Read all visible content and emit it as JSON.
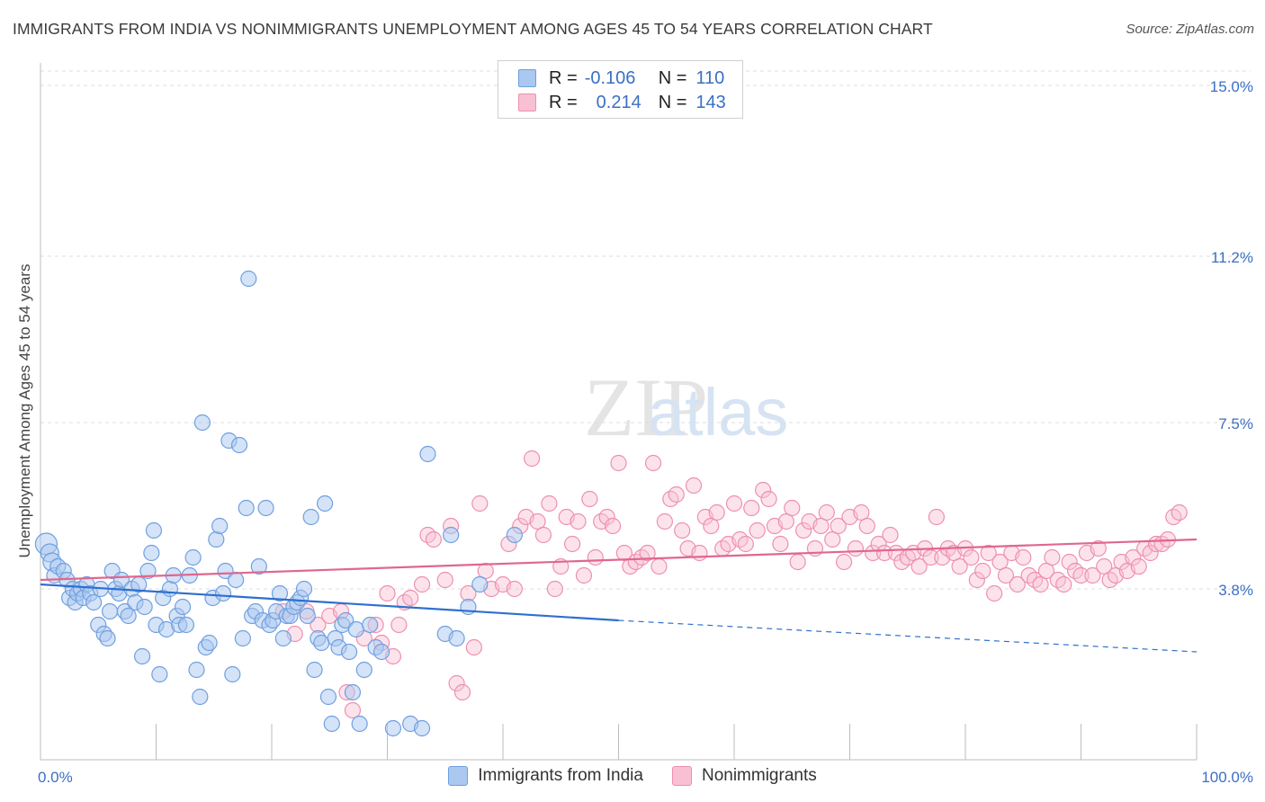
{
  "title": "IMMIGRANTS FROM INDIA VS NONIMMIGRANTS UNEMPLOYMENT AMONG AGES 45 TO 54 YEARS CORRELATION CHART",
  "source": "Source: ZipAtlas.com",
  "watermark": {
    "zip": "ZIP",
    "atlas": "atlas"
  },
  "legend": {
    "r_label": "R =",
    "n_label": "N =",
    "rows": [
      {
        "r": "-0.106",
        "n": "110",
        "fill": "#aac8f0",
        "stroke": "#6f9fe0"
      },
      {
        "r": "0.214",
        "n": "143",
        "fill": "#f8c0d2",
        "stroke": "#ee8fae"
      }
    ]
  },
  "chart_data": {
    "type": "scatter",
    "title": "IMMIGRANTS FROM INDIA VS NONIMMIGRANTS UNEMPLOYMENT AMONG AGES 45 TO 54 YEARS CORRELATION CHART",
    "xlabel": "",
    "ylabel": "Unemployment Among Ages 45 to 54 years",
    "xlim": [
      0,
      100
    ],
    "ylim": [
      0,
      15.5
    ],
    "x_tick_labels": [
      "0.0%",
      "100.0%"
    ],
    "y_ticks": [
      3.8,
      7.5,
      11.2,
      15.0
    ],
    "y_tick_labels": [
      "3.8%",
      "7.5%",
      "11.2%",
      "15.0%"
    ],
    "grid": true,
    "legend_position": "top-center",
    "colors": {
      "india": "#6f9fe0",
      "india_fill": "#aac8f0",
      "non": "#ee8fae",
      "non_fill": "#f8c0d2",
      "india_line": "#2f6fce",
      "non_line": "#e0678e",
      "tick_label": "#3b6fc4"
    },
    "series": [
      {
        "name": "Immigrants from India",
        "r": -0.106,
        "n": 110,
        "trend": {
          "x0": 0,
          "y0": 3.9,
          "x1": 50,
          "y1": 3.1,
          "dashed_to_x": 100,
          "dashed_to_y": 2.4
        },
        "points": [
          [
            0.5,
            4.8
          ],
          [
            0.8,
            4.6
          ],
          [
            1.0,
            4.4
          ],
          [
            1.2,
            4.1
          ],
          [
            1.5,
            4.3
          ],
          [
            2,
            4.2
          ],
          [
            2.3,
            4.0
          ],
          [
            2.5,
            3.6
          ],
          [
            2.8,
            3.8
          ],
          [
            3,
            3.5
          ],
          [
            3.2,
            3.7
          ],
          [
            3.5,
            3.8
          ],
          [
            3.7,
            3.6
          ],
          [
            4,
            3.9
          ],
          [
            4.3,
            3.7
          ],
          [
            4.6,
            3.5
          ],
          [
            5,
            3.0
          ],
          [
            5.2,
            3.8
          ],
          [
            5.5,
            2.8
          ],
          [
            5.8,
            2.7
          ],
          [
            6,
            3.3
          ],
          [
            6.2,
            4.2
          ],
          [
            6.5,
            3.8
          ],
          [
            6.8,
            3.7
          ],
          [
            7,
            4.0
          ],
          [
            7.3,
            3.3
          ],
          [
            7.6,
            3.2
          ],
          [
            7.9,
            3.8
          ],
          [
            8.2,
            3.5
          ],
          [
            8.5,
            3.9
          ],
          [
            8.8,
            2.3
          ],
          [
            9,
            3.4
          ],
          [
            9.3,
            4.2
          ],
          [
            9.6,
            4.6
          ],
          [
            9.8,
            5.1
          ],
          [
            10,
            3.0
          ],
          [
            10.3,
            1.9
          ],
          [
            10.6,
            3.6
          ],
          [
            10.9,
            2.9
          ],
          [
            11.2,
            3.8
          ],
          [
            11.5,
            4.1
          ],
          [
            11.8,
            3.2
          ],
          [
            12,
            3.0
          ],
          [
            12.3,
            3.4
          ],
          [
            12.6,
            3.0
          ],
          [
            12.9,
            4.1
          ],
          [
            13.2,
            4.5
          ],
          [
            13.5,
            2.0
          ],
          [
            13.8,
            1.4
          ],
          [
            14,
            7.5
          ],
          [
            14.3,
            2.5
          ],
          [
            14.6,
            2.6
          ],
          [
            14.9,
            3.6
          ],
          [
            15.2,
            4.9
          ],
          [
            15.5,
            5.2
          ],
          [
            15.8,
            3.7
          ],
          [
            16,
            4.2
          ],
          [
            16.3,
            7.1
          ],
          [
            16.6,
            1.9
          ],
          [
            16.9,
            4.0
          ],
          [
            17.2,
            7.0
          ],
          [
            17.5,
            2.7
          ],
          [
            17.8,
            5.6
          ],
          [
            18,
            10.7
          ],
          [
            18.3,
            3.2
          ],
          [
            18.6,
            3.3
          ],
          [
            18.9,
            4.3
          ],
          [
            19.2,
            3.1
          ],
          [
            19.5,
            5.6
          ],
          [
            19.8,
            3.0
          ],
          [
            20.1,
            3.1
          ],
          [
            20.4,
            3.3
          ],
          [
            20.7,
            3.7
          ],
          [
            21,
            2.7
          ],
          [
            21.3,
            3.2
          ],
          [
            21.6,
            3.2
          ],
          [
            21.9,
            3.4
          ],
          [
            22.2,
            3.5
          ],
          [
            22.5,
            3.6
          ],
          [
            22.8,
            3.8
          ],
          [
            23.1,
            3.2
          ],
          [
            23.4,
            5.4
          ],
          [
            23.7,
            2.0
          ],
          [
            24,
            2.7
          ],
          [
            24.3,
            2.6
          ],
          [
            24.6,
            5.7
          ],
          [
            24.9,
            1.4
          ],
          [
            25.2,
            0.8
          ],
          [
            25.5,
            2.7
          ],
          [
            25.8,
            2.5
          ],
          [
            26.1,
            3.0
          ],
          [
            26.4,
            3.1
          ],
          [
            26.7,
            2.4
          ],
          [
            27,
            1.5
          ],
          [
            27.3,
            2.9
          ],
          [
            27.6,
            0.8
          ],
          [
            28,
            2.0
          ],
          [
            28.5,
            3.0
          ],
          [
            29,
            2.5
          ],
          [
            29.5,
            2.4
          ],
          [
            30.5,
            0.7
          ],
          [
            32,
            0.8
          ],
          [
            33,
            0.7
          ],
          [
            33.5,
            6.8
          ],
          [
            35,
            2.8
          ],
          [
            35.5,
            5.0
          ],
          [
            36,
            2.7
          ],
          [
            37,
            3.4
          ],
          [
            38,
            3.9
          ],
          [
            41,
            5.0
          ]
        ]
      },
      {
        "name": "Nonimmigrants",
        "r": 0.214,
        "n": 143,
        "trend": {
          "x0": 0,
          "y0": 4.0,
          "x1": 100,
          "y1": 4.9
        },
        "points": [
          [
            21,
            3.3
          ],
          [
            22,
            2.8
          ],
          [
            23,
            3.3
          ],
          [
            24,
            3.0
          ],
          [
            25,
            3.2
          ],
          [
            26,
            3.3
          ],
          [
            26.5,
            1.5
          ],
          [
            27,
            1.1
          ],
          [
            28,
            2.7
          ],
          [
            29,
            3.0
          ],
          [
            29.5,
            2.6
          ],
          [
            30,
            3.7
          ],
          [
            30.5,
            2.3
          ],
          [
            31,
            3.0
          ],
          [
            31.5,
            3.5
          ],
          [
            32,
            3.6
          ],
          [
            33,
            3.9
          ],
          [
            33.5,
            5.0
          ],
          [
            34,
            4.9
          ],
          [
            35,
            4.0
          ],
          [
            35.5,
            5.2
          ],
          [
            36,
            1.7
          ],
          [
            36.5,
            1.5
          ],
          [
            37,
            3.7
          ],
          [
            37.5,
            2.5
          ],
          [
            38,
            5.7
          ],
          [
            38.5,
            4.2
          ],
          [
            39,
            3.8
          ],
          [
            40,
            3.9
          ],
          [
            40.5,
            4.8
          ],
          [
            41,
            3.8
          ],
          [
            41.5,
            5.2
          ],
          [
            42,
            5.4
          ],
          [
            42.5,
            6.7
          ],
          [
            43,
            5.3
          ],
          [
            43.5,
            5.0
          ],
          [
            44,
            5.7
          ],
          [
            44.5,
            3.8
          ],
          [
            45,
            4.3
          ],
          [
            45.5,
            5.4
          ],
          [
            46,
            4.8
          ],
          [
            46.5,
            5.3
          ],
          [
            47,
            4.1
          ],
          [
            47.5,
            5.8
          ],
          [
            48,
            4.5
          ],
          [
            48.5,
            5.3
          ],
          [
            49,
            5.4
          ],
          [
            49.5,
            5.2
          ],
          [
            50,
            6.6
          ],
          [
            50.5,
            4.6
          ],
          [
            51,
            4.3
          ],
          [
            51.5,
            4.4
          ],
          [
            52,
            4.5
          ],
          [
            52.5,
            4.6
          ],
          [
            53,
            6.6
          ],
          [
            53.5,
            4.3
          ],
          [
            54,
            5.3
          ],
          [
            54.5,
            5.8
          ],
          [
            55,
            5.9
          ],
          [
            55.5,
            5.1
          ],
          [
            56,
            4.7
          ],
          [
            56.5,
            6.1
          ],
          [
            57,
            4.6
          ],
          [
            57.5,
            5.4
          ],
          [
            58,
            5.2
          ],
          [
            58.5,
            5.5
          ],
          [
            59,
            4.7
          ],
          [
            59.5,
            4.8
          ],
          [
            60,
            5.7
          ],
          [
            60.5,
            4.9
          ],
          [
            61,
            4.8
          ],
          [
            61.5,
            5.6
          ],
          [
            62,
            5.1
          ],
          [
            62.5,
            6.0
          ],
          [
            63,
            5.8
          ],
          [
            63.5,
            5.2
          ],
          [
            64,
            4.8
          ],
          [
            64.5,
            5.3
          ],
          [
            65,
            5.6
          ],
          [
            65.5,
            4.4
          ],
          [
            66,
            5.1
          ],
          [
            66.5,
            5.3
          ],
          [
            67,
            4.7
          ],
          [
            67.5,
            5.2
          ],
          [
            68,
            5.5
          ],
          [
            68.5,
            4.9
          ],
          [
            69,
            5.2
          ],
          [
            69.5,
            4.4
          ],
          [
            70,
            5.4
          ],
          [
            70.5,
            4.7
          ],
          [
            71,
            5.5
          ],
          [
            71.5,
            5.2
          ],
          [
            72,
            4.6
          ],
          [
            72.5,
            4.8
          ],
          [
            73,
            4.6
          ],
          [
            73.5,
            5.0
          ],
          [
            74,
            4.6
          ],
          [
            74.5,
            4.4
          ],
          [
            75,
            4.5
          ],
          [
            75.5,
            4.6
          ],
          [
            76,
            4.3
          ],
          [
            76.5,
            4.7
          ],
          [
            77,
            4.5
          ],
          [
            77.5,
            5.4
          ],
          [
            78,
            4.5
          ],
          [
            78.5,
            4.7
          ],
          [
            79,
            4.6
          ],
          [
            79.5,
            4.3
          ],
          [
            80,
            4.7
          ],
          [
            80.5,
            4.5
          ],
          [
            81,
            4.0
          ],
          [
            81.5,
            4.2
          ],
          [
            82,
            4.6
          ],
          [
            82.5,
            3.7
          ],
          [
            83,
            4.4
          ],
          [
            83.5,
            4.1
          ],
          [
            84,
            4.6
          ],
          [
            84.5,
            3.9
          ],
          [
            85,
            4.5
          ],
          [
            85.5,
            4.1
          ],
          [
            86,
            4.0
          ],
          [
            86.5,
            3.9
          ],
          [
            87,
            4.2
          ],
          [
            87.5,
            4.5
          ],
          [
            88,
            4.0
          ],
          [
            88.5,
            3.9
          ],
          [
            89,
            4.4
          ],
          [
            89.5,
            4.2
          ],
          [
            90,
            4.1
          ],
          [
            90.5,
            4.6
          ],
          [
            91,
            4.1
          ],
          [
            91.5,
            4.7
          ],
          [
            92,
            4.3
          ],
          [
            92.5,
            4.0
          ],
          [
            93,
            4.1
          ],
          [
            93.5,
            4.4
          ],
          [
            94,
            4.2
          ],
          [
            94.5,
            4.5
          ],
          [
            95,
            4.3
          ],
          [
            95.5,
            4.7
          ],
          [
            96,
            4.6
          ],
          [
            96.5,
            4.8
          ],
          [
            97,
            4.8
          ],
          [
            97.5,
            4.9
          ],
          [
            98,
            5.4
          ],
          [
            98.5,
            5.5
          ]
        ]
      }
    ]
  },
  "bottom_legend": {
    "india": "Immigrants from India",
    "non": "Nonimmigrants"
  }
}
